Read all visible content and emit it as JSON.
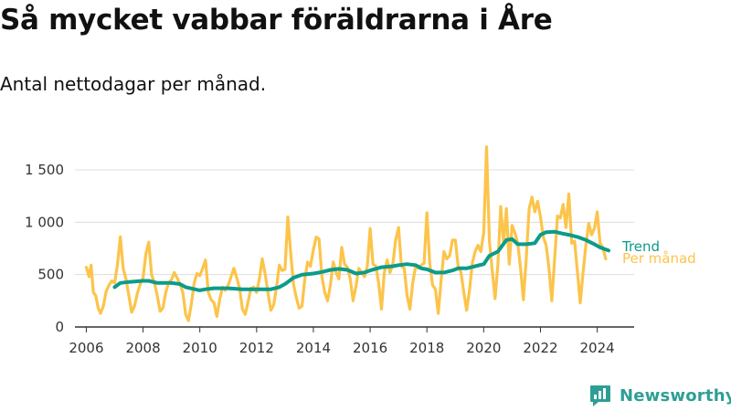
{
  "title": "Så mycket vabbar föräldrarna i Åre",
  "subtitle": "Antal nettodagar per månad.",
  "brand": {
    "name": "Newsworthy",
    "icon": "newsworthy-logo-icon"
  },
  "colors": {
    "per_month": "#fcc44a",
    "trend": "#0c9b8a",
    "grid": "#dddddd",
    "axis": "#333333"
  },
  "chart_data": {
    "type": "line",
    "title": "Så mycket vabbar föräldrarna i Åre",
    "subtitle": "Antal nettodagar per månad.",
    "xlabel": "",
    "ylabel": "",
    "xlim": [
      2005.6,
      2025.3
    ],
    "ylim": [
      0,
      1500
    ],
    "y_ticks": [
      0,
      500,
      1000,
      1500
    ],
    "y_tick_labels": [
      "0",
      "500",
      "1 000",
      "1 500"
    ],
    "x_ticks": [
      2006,
      2008,
      2010,
      2012,
      2014,
      2016,
      2018,
      2020,
      2022,
      2024
    ],
    "x_tick_labels": [
      "2006",
      "2008",
      "2010",
      "2012",
      "2014",
      "2016",
      "2018",
      "2020",
      "2022",
      "2024"
    ],
    "grid": true,
    "legend": "direct labels at right end of lines",
    "series": [
      {
        "name": "Per månad",
        "color": "#fcc44a",
        "points": [
          [
            2006.0,
            570
          ],
          [
            2006.1,
            480
          ],
          [
            2006.17,
            590
          ],
          [
            2006.25,
            330
          ],
          [
            2006.33,
            300
          ],
          [
            2006.42,
            180
          ],
          [
            2006.5,
            130
          ],
          [
            2006.6,
            200
          ],
          [
            2006.7,
            340
          ],
          [
            2006.8,
            400
          ],
          [
            2006.9,
            440
          ],
          [
            2007.0,
            420
          ],
          [
            2007.1,
            600
          ],
          [
            2007.2,
            860
          ],
          [
            2007.3,
            560
          ],
          [
            2007.4,
            460
          ],
          [
            2007.5,
            300
          ],
          [
            2007.6,
            140
          ],
          [
            2007.7,
            200
          ],
          [
            2007.8,
            320
          ],
          [
            2007.9,
            410
          ],
          [
            2008.0,
            470
          ],
          [
            2008.1,
            700
          ],
          [
            2008.2,
            810
          ],
          [
            2008.3,
            500
          ],
          [
            2008.4,
            420
          ],
          [
            2008.5,
            300
          ],
          [
            2008.6,
            150
          ],
          [
            2008.7,
            180
          ],
          [
            2008.8,
            330
          ],
          [
            2008.9,
            420
          ],
          [
            2009.0,
            450
          ],
          [
            2009.1,
            520
          ],
          [
            2009.2,
            470
          ],
          [
            2009.3,
            410
          ],
          [
            2009.4,
            330
          ],
          [
            2009.5,
            120
          ],
          [
            2009.6,
            60
          ],
          [
            2009.7,
            220
          ],
          [
            2009.8,
            420
          ],
          [
            2009.9,
            510
          ],
          [
            2010.0,
            490
          ],
          [
            2010.1,
            560
          ],
          [
            2010.2,
            640
          ],
          [
            2010.3,
            330
          ],
          [
            2010.4,
            260
          ],
          [
            2010.5,
            230
          ],
          [
            2010.6,
            100
          ],
          [
            2010.7,
            260
          ],
          [
            2010.8,
            380
          ],
          [
            2010.9,
            350
          ],
          [
            2011.0,
            400
          ],
          [
            2011.1,
            480
          ],
          [
            2011.2,
            560
          ],
          [
            2011.3,
            470
          ],
          [
            2011.4,
            370
          ],
          [
            2011.5,
            170
          ],
          [
            2011.6,
            120
          ],
          [
            2011.7,
            240
          ],
          [
            2011.8,
            370
          ],
          [
            2011.9,
            380
          ],
          [
            2012.0,
            330
          ],
          [
            2012.1,
            460
          ],
          [
            2012.2,
            650
          ],
          [
            2012.3,
            510
          ],
          [
            2012.4,
            330
          ],
          [
            2012.5,
            160
          ],
          [
            2012.6,
            210
          ],
          [
            2012.7,
            380
          ],
          [
            2012.8,
            590
          ],
          [
            2012.9,
            540
          ],
          [
            2013.0,
            550
          ],
          [
            2013.1,
            1050
          ],
          [
            2013.2,
            710
          ],
          [
            2013.3,
            410
          ],
          [
            2013.4,
            280
          ],
          [
            2013.5,
            180
          ],
          [
            2013.6,
            200
          ],
          [
            2013.7,
            460
          ],
          [
            2013.8,
            620
          ],
          [
            2013.9,
            580
          ],
          [
            2014.0,
            740
          ],
          [
            2014.1,
            860
          ],
          [
            2014.2,
            840
          ],
          [
            2014.3,
            480
          ],
          [
            2014.4,
            330
          ],
          [
            2014.5,
            250
          ],
          [
            2014.6,
            400
          ],
          [
            2014.7,
            620
          ],
          [
            2014.8,
            520
          ],
          [
            2014.9,
            460
          ],
          [
            2015.0,
            760
          ],
          [
            2015.1,
            600
          ],
          [
            2015.2,
            570
          ],
          [
            2015.3,
            460
          ],
          [
            2015.4,
            250
          ],
          [
            2015.5,
            390
          ],
          [
            2015.6,
            560
          ],
          [
            2015.7,
            520
          ],
          [
            2015.8,
            480
          ],
          [
            2015.9,
            580
          ],
          [
            2016.0,
            940
          ],
          [
            2016.1,
            600
          ],
          [
            2016.2,
            580
          ],
          [
            2016.3,
            420
          ],
          [
            2016.4,
            170
          ],
          [
            2016.5,
            520
          ],
          [
            2016.6,
            640
          ],
          [
            2016.7,
            520
          ],
          [
            2016.8,
            600
          ],
          [
            2016.9,
            830
          ],
          [
            2017.0,
            950
          ],
          [
            2017.1,
            580
          ],
          [
            2017.2,
            560
          ],
          [
            2017.3,
            300
          ],
          [
            2017.4,
            170
          ],
          [
            2017.5,
            420
          ],
          [
            2017.6,
            580
          ],
          [
            2017.7,
            560
          ],
          [
            2017.8,
            590
          ],
          [
            2017.9,
            610
          ],
          [
            2018.0,
            1090
          ],
          [
            2018.1,
            610
          ],
          [
            2018.2,
            400
          ],
          [
            2018.3,
            360
          ],
          [
            2018.4,
            130
          ],
          [
            2018.5,
            450
          ],
          [
            2018.6,
            720
          ],
          [
            2018.7,
            650
          ],
          [
            2018.8,
            680
          ],
          [
            2018.9,
            830
          ],
          [
            2019.0,
            830
          ],
          [
            2019.1,
            580
          ],
          [
            2019.2,
            520
          ],
          [
            2019.3,
            330
          ],
          [
            2019.4,
            160
          ],
          [
            2019.5,
            350
          ],
          [
            2019.6,
            610
          ],
          [
            2019.7,
            720
          ],
          [
            2019.8,
            780
          ],
          [
            2019.9,
            720
          ],
          [
            2020.0,
            900
          ],
          [
            2020.1,
            1720
          ],
          [
            2020.2,
            820
          ],
          [
            2020.3,
            540
          ],
          [
            2020.4,
            270
          ],
          [
            2020.5,
            600
          ],
          [
            2020.6,
            1150
          ],
          [
            2020.7,
            800
          ],
          [
            2020.8,
            1130
          ],
          [
            2020.9,
            600
          ],
          [
            2021.0,
            970
          ],
          [
            2021.1,
            900
          ],
          [
            2021.2,
            800
          ],
          [
            2021.3,
            560
          ],
          [
            2021.4,
            260
          ],
          [
            2021.5,
            650
          ],
          [
            2021.6,
            1130
          ],
          [
            2021.7,
            1240
          ],
          [
            2021.8,
            1100
          ],
          [
            2021.9,
            1200
          ],
          [
            2022.0,
            1050
          ],
          [
            2022.1,
            860
          ],
          [
            2022.2,
            780
          ],
          [
            2022.3,
            560
          ],
          [
            2022.4,
            250
          ],
          [
            2022.5,
            650
          ],
          [
            2022.6,
            1060
          ],
          [
            2022.7,
            1040
          ],
          [
            2022.8,
            1170
          ],
          [
            2022.9,
            950
          ],
          [
            2023.0,
            1270
          ],
          [
            2023.1,
            800
          ],
          [
            2023.2,
            820
          ],
          [
            2023.3,
            530
          ],
          [
            2023.4,
            230
          ],
          [
            2023.5,
            520
          ],
          [
            2023.6,
            780
          ],
          [
            2023.7,
            990
          ],
          [
            2023.8,
            880
          ],
          [
            2023.9,
            940
          ],
          [
            2024.0,
            1100
          ],
          [
            2024.1,
            800
          ],
          [
            2024.2,
            760
          ],
          [
            2024.3,
            650
          ]
        ]
      },
      {
        "name": "Trend",
        "color": "#0c9b8a",
        "points": [
          [
            2007.0,
            380
          ],
          [
            2007.2,
            420
          ],
          [
            2007.5,
            430
          ],
          [
            2008.0,
            440
          ],
          [
            2008.2,
            440
          ],
          [
            2008.5,
            420
          ],
          [
            2009.0,
            420
          ],
          [
            2009.3,
            410
          ],
          [
            2009.5,
            380
          ],
          [
            2010.0,
            350
          ],
          [
            2010.2,
            360
          ],
          [
            2010.5,
            370
          ],
          [
            2011.0,
            370
          ],
          [
            2011.5,
            360
          ],
          [
            2012.0,
            360
          ],
          [
            2012.5,
            360
          ],
          [
            2012.8,
            380
          ],
          [
            2013.0,
            410
          ],
          [
            2013.3,
            470
          ],
          [
            2013.6,
            500
          ],
          [
            2014.0,
            510
          ],
          [
            2014.3,
            525
          ],
          [
            2014.6,
            545
          ],
          [
            2014.9,
            555
          ],
          [
            2015.2,
            545
          ],
          [
            2015.5,
            510
          ],
          [
            2015.8,
            520
          ],
          [
            2016.0,
            540
          ],
          [
            2016.4,
            570
          ],
          [
            2016.8,
            580
          ],
          [
            2017.0,
            590
          ],
          [
            2017.3,
            600
          ],
          [
            2017.6,
            590
          ],
          [
            2017.8,
            560
          ],
          [
            2018.0,
            550
          ],
          [
            2018.3,
            520
          ],
          [
            2018.6,
            520
          ],
          [
            2018.9,
            540
          ],
          [
            2019.1,
            560
          ],
          [
            2019.4,
            560
          ],
          [
            2019.7,
            580
          ],
          [
            2020.0,
            600
          ],
          [
            2020.2,
            680
          ],
          [
            2020.5,
            720
          ],
          [
            2020.8,
            830
          ],
          [
            2021.0,
            840
          ],
          [
            2021.2,
            790
          ],
          [
            2021.5,
            790
          ],
          [
            2021.8,
            800
          ],
          [
            2022.0,
            880
          ],
          [
            2022.2,
            905
          ],
          [
            2022.5,
            910
          ],
          [
            2022.8,
            890
          ],
          [
            2023.0,
            880
          ],
          [
            2023.3,
            860
          ],
          [
            2023.6,
            830
          ],
          [
            2023.9,
            790
          ],
          [
            2024.1,
            760
          ],
          [
            2024.4,
            730
          ]
        ]
      }
    ]
  }
}
